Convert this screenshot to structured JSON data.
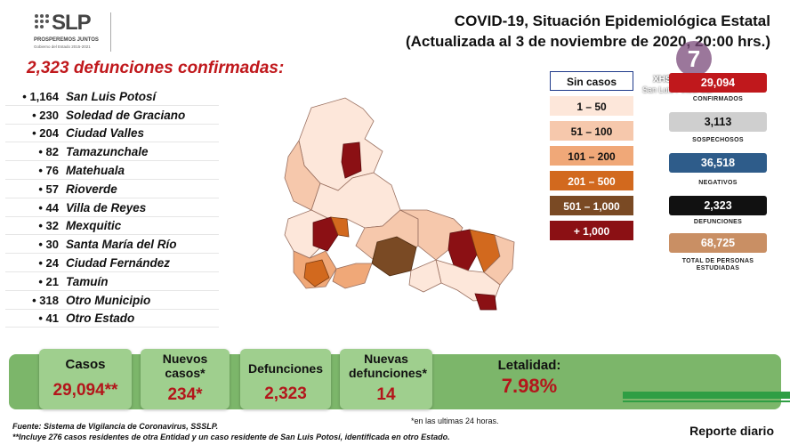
{
  "header": {
    "logo_text": "SLP",
    "logo_sub1": "PROSPEREMOS JUNTOS",
    "logo_sub2": "Gobierno del Estado 2015-2021",
    "title_line1": "COVID-19, Situación Epidemiológica Estatal",
    "title_line2": "(Actualizada al 3 de noviembre de 2020, 20:00 hrs.)"
  },
  "deaths": {
    "heading": "2,323 defunciones confirmadas:",
    "items": [
      {
        "count": "1,164",
        "name": "San Luis Potosí"
      },
      {
        "count": "230",
        "name": "Soledad de Graciano"
      },
      {
        "count": "204",
        "name": "Ciudad Valles"
      },
      {
        "count": "82",
        "name": "Tamazunchale"
      },
      {
        "count": "76",
        "name": "Matehuala"
      },
      {
        "count": "57",
        "name": "Rioverde"
      },
      {
        "count": "44",
        "name": "Villa de Reyes"
      },
      {
        "count": "32",
        "name": "Mexquitic"
      },
      {
        "count": "30",
        "name": "Santa María del Río"
      },
      {
        "count": "24",
        "name": "Ciudad Fernández"
      },
      {
        "count": "21",
        "name": "Tamuín"
      },
      {
        "count": "318",
        "name": "Otro Municipio"
      },
      {
        "count": "41",
        "name": "Otro Estado"
      }
    ]
  },
  "legend": {
    "items": [
      {
        "label": "Sin casos",
        "bg": "#ffffff",
        "fg": "#111111",
        "border": "#1e3a8a"
      },
      {
        "label": "1 – 50",
        "bg": "#fde7da",
        "fg": "#111111",
        "border": "#fde7da"
      },
      {
        "label": "51 – 100",
        "bg": "#f6c8ac",
        "fg": "#111111",
        "border": "#f6c8ac"
      },
      {
        "label": "101 – 200",
        "bg": "#f0a878",
        "fg": "#111111",
        "border": "#f0a878"
      },
      {
        "label": "201 – 500",
        "bg": "#d2691e",
        "fg": "#ffffff",
        "border": "#d2691e"
      },
      {
        "label": "501 – 1,000",
        "bg": "#7a4a24",
        "fg": "#ffffff",
        "border": "#7a4a24"
      },
      {
        "label": "+ 1,000",
        "bg": "#8b1014",
        "fg": "#ffffff",
        "border": "#8b1014"
      }
    ]
  },
  "channel": {
    "name": "XHSLV",
    "sub": "San Luis Potosí SLP",
    "number": "7"
  },
  "stats": [
    {
      "value": "29,094",
      "label": "CONFIRMADOS",
      "bg": "#c0181c",
      "fg": "#ffffff"
    },
    {
      "value": "3,113",
      "label": "SOSPECHOSOS",
      "bg": "#cfcfcf",
      "fg": "#111111"
    },
    {
      "value": "36,518",
      "label": "NEGATIVOS",
      "bg": "#2e5c8a",
      "fg": "#ffffff"
    },
    {
      "value": "2,323",
      "label": "DEFUNCIONES",
      "bg": "#111111",
      "fg": "#ffffff"
    },
    {
      "value": "68,725",
      "label": "TOTAL DE PERSONAS ESTUDIADAS",
      "bg": "#c98f64",
      "fg": "#ffffff"
    }
  ],
  "summary": {
    "casos_label": "Casos",
    "casos_value": "29,094**",
    "nuevos_casos_label": "Nuevos casos*",
    "nuevos_casos_value": "234*",
    "defunciones_label": "Defunciones",
    "defunciones_value": "2,323",
    "nuevas_defunciones_label": "Nuevas defunciones*",
    "nuevas_defunciones_value": "14",
    "letalidad_label": "Letalidad:",
    "letalidad_value": "7.98%"
  },
  "footer": {
    "last24": "*en las ultimas 24 horas.",
    "source": "Fuente: Sistema de Vigilancia de Coronavirus, SSSLP.",
    "note": "**Incluye 276 casos residentes de otra Entidad y un caso residente de San Luis Potosí, identificada en otro Estado.",
    "report": "Reporte diario"
  },
  "colors": {
    "accent_red": "#c0181c",
    "band_green": "#7cb66a",
    "card_green": "#9fcf8e"
  }
}
